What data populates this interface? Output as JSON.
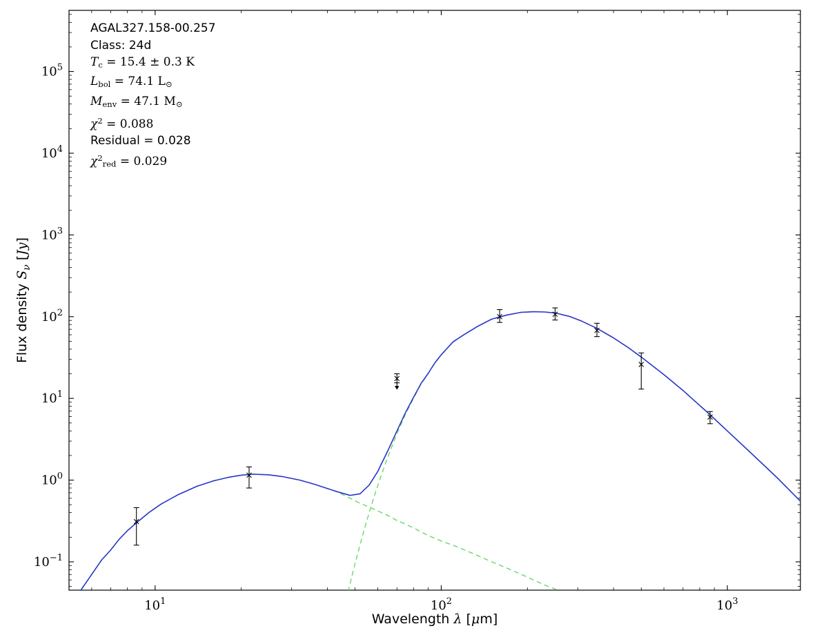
{
  "page": {
    "background": "#ffffff"
  },
  "chart_data": {
    "type": "line",
    "title": "",
    "xscale": "log",
    "yscale": "log",
    "xlim": [
      5,
      1800
    ],
    "ylim": [
      0.045,
      560000
    ],
    "grid": false,
    "legend": "none",
    "x_tick_exponents": [
      1,
      2,
      3
    ],
    "y_tick_exponents": [
      -1,
      0,
      1,
      2,
      3,
      4,
      5
    ],
    "colors": {
      "total": "#2a35cc",
      "component": "#66d966",
      "data": "#000000",
      "axis": "#000000"
    },
    "xlabel_segments": [
      {
        "t": "Wavelength ",
        "f": "sans"
      },
      {
        "t": "λ",
        "f": "serif",
        "i": true
      },
      {
        "t": " [",
        "f": "sans"
      },
      {
        "t": "μ",
        "f": "serif",
        "i": true
      },
      {
        "t": "m]",
        "f": "sans"
      }
    ],
    "ylabel_segments": [
      {
        "t": "Flux density ",
        "f": "sans"
      },
      {
        "t": "S",
        "f": "serif",
        "i": true
      },
      {
        "t": "ν",
        "f": "serif",
        "i": true,
        "sub": true
      },
      {
        "t": " [",
        "f": "sans"
      },
      {
        "t": "Jy",
        "f": "serif",
        "i": true
      },
      {
        "t": "]",
        "f": "sans"
      }
    ],
    "annotations": [
      [
        {
          "t": "AGAL327.158-00.257",
          "f": "sans"
        }
      ],
      [
        {
          "t": "Class: 24d",
          "f": "sans"
        }
      ],
      [
        {
          "t": "T",
          "f": "serif",
          "i": true
        },
        {
          "t": "c",
          "f": "serif",
          "sub": true
        },
        {
          "t": " = 15.4 ± 0.3 K",
          "f": "serif"
        }
      ],
      [
        {
          "t": "L",
          "f": "serif",
          "i": true
        },
        {
          "t": "bol",
          "f": "serif",
          "sub": true
        },
        {
          "t": " = 74.1 L",
          "f": "serif"
        },
        {
          "t": "⊙",
          "f": "serif",
          "sub": true
        }
      ],
      [
        {
          "t": "M",
          "f": "serif",
          "i": true
        },
        {
          "t": "env",
          "f": "serif",
          "sub": true
        },
        {
          "t": " = 47.1 M",
          "f": "serif"
        },
        {
          "t": "⊙",
          "f": "serif",
          "sub": true
        }
      ],
      [
        {
          "t": "χ",
          "f": "serif",
          "i": true
        },
        {
          "t": "2",
          "f": "serif",
          "sup": true
        },
        {
          "t": " = 0.088",
          "f": "serif"
        }
      ],
      [
        {
          "t": "Residual = 0.028",
          "f": "sans"
        }
      ],
      [
        {
          "t": "χ",
          "f": "serif",
          "i": true
        },
        {
          "t": "2",
          "f": "serif",
          "sup": true
        },
        {
          "t": "red",
          "f": "serif",
          "sub": true
        },
        {
          "t": " = 0.029",
          "f": "serif"
        }
      ]
    ],
    "series": [
      {
        "name": "warm-component",
        "style": "dashed",
        "color_key": "component",
        "width": 1.4,
        "x": [
          5.5,
          6,
          6.5,
          7,
          7.5,
          8,
          8.6,
          9.5,
          10.5,
          12,
          14,
          16,
          18,
          20,
          22,
          25,
          28,
          32,
          36,
          40,
          44,
          48,
          52,
          56,
          60,
          65,
          70,
          75,
          80,
          90,
          100,
          115,
          130,
          150,
          175,
          200,
          230,
          260,
          300,
          340
        ],
        "y": [
          0.045,
          0.07,
          0.105,
          0.14,
          0.19,
          0.24,
          0.3,
          0.4,
          0.51,
          0.66,
          0.84,
          0.98,
          1.08,
          1.15,
          1.18,
          1.16,
          1.1,
          1.0,
          0.89,
          0.79,
          0.7,
          0.6,
          0.52,
          0.47,
          0.42,
          0.37,
          0.32,
          0.29,
          0.26,
          0.21,
          0.18,
          0.15,
          0.125,
          0.1,
          0.08,
          0.065,
          0.052,
          0.044,
          0.035,
          0.029
        ]
      },
      {
        "name": "cold-envelope-component",
        "style": "dashed",
        "color_key": "component",
        "width": 1.4,
        "x": [
          42,
          44,
          46,
          48,
          50,
          52,
          54,
          56,
          58,
          60,
          62,
          65,
          70,
          75,
          80,
          85,
          90,
          95,
          100,
          110,
          120,
          135,
          150,
          170,
          190,
          210,
          230,
          250,
          280,
          310,
          350,
          400,
          450,
          500,
          600,
          700,
          870,
          1000,
          1200,
          1500,
          2000
        ],
        "y": [
          0.007,
          0.014,
          0.029,
          0.054,
          0.096,
          0.16,
          0.26,
          0.4,
          0.6,
          0.86,
          1.2,
          1.9,
          3.7,
          6.4,
          10,
          15,
          20,
          27,
          34,
          49,
          60,
          77,
          93,
          105,
          113,
          115,
          114,
          111,
          101,
          88,
          72,
          55,
          42,
          32,
          19.5,
          12.5,
          6.3,
          4.0,
          2.2,
          1.05,
          0.38
        ]
      },
      {
        "name": "total-fit",
        "style": "solid",
        "color_key": "total",
        "width": 1.6,
        "x": [
          5.5,
          6,
          6.5,
          7,
          7.5,
          8,
          8.6,
          9.5,
          10.5,
          12,
          14,
          16,
          18,
          20,
          22,
          25,
          28,
          32,
          36,
          40,
          44,
          48,
          52,
          56,
          60,
          65,
          70,
          75,
          80,
          85,
          90,
          95,
          100,
          110,
          120,
          135,
          150,
          170,
          190,
          210,
          230,
          250,
          280,
          310,
          350,
          400,
          450,
          500,
          600,
          700,
          870,
          1000,
          1200,
          1500,
          2000
        ],
        "y": [
          0.045,
          0.07,
          0.105,
          0.14,
          0.19,
          0.24,
          0.3,
          0.4,
          0.51,
          0.66,
          0.84,
          0.98,
          1.08,
          1.15,
          1.18,
          1.16,
          1.1,
          1.0,
          0.89,
          0.79,
          0.71,
          0.65,
          0.68,
          0.87,
          1.28,
          2.27,
          4.0,
          6.7,
          10.3,
          15.2,
          20.2,
          27.2,
          34.2,
          49.2,
          60.1,
          77.1,
          93.1,
          105.0,
          113.0,
          115.0,
          114.0,
          111.0,
          101.0,
          88.0,
          72.0,
          55.0,
          42.0,
          32.0,
          19.5,
          12.5,
          6.3,
          4.0,
          2.2,
          1.05,
          0.38
        ]
      }
    ],
    "points": [
      {
        "x": 8.6,
        "y": 0.31,
        "y_lo": 0.16,
        "y_hi": 0.46,
        "upper_limit": false
      },
      {
        "x": 21.3,
        "y": 1.15,
        "y_lo": 0.8,
        "y_hi": 1.45,
        "upper_limit": false
      },
      {
        "x": 70,
        "y": 17.5,
        "y_lo": 15.5,
        "y_hi": 20,
        "upper_limit": true
      },
      {
        "x": 160,
        "y": 100,
        "y_lo": 85,
        "y_hi": 122,
        "upper_limit": false
      },
      {
        "x": 250,
        "y": 107,
        "y_lo": 91,
        "y_hi": 128,
        "upper_limit": false
      },
      {
        "x": 350,
        "y": 68,
        "y_lo": 57,
        "y_hi": 83,
        "upper_limit": false
      },
      {
        "x": 500,
        "y": 26,
        "y_lo": 13,
        "y_hi": 36,
        "upper_limit": false
      },
      {
        "x": 870,
        "y": 5.9,
        "y_lo": 4.9,
        "y_hi": 6.9,
        "upper_limit": false
      }
    ]
  }
}
